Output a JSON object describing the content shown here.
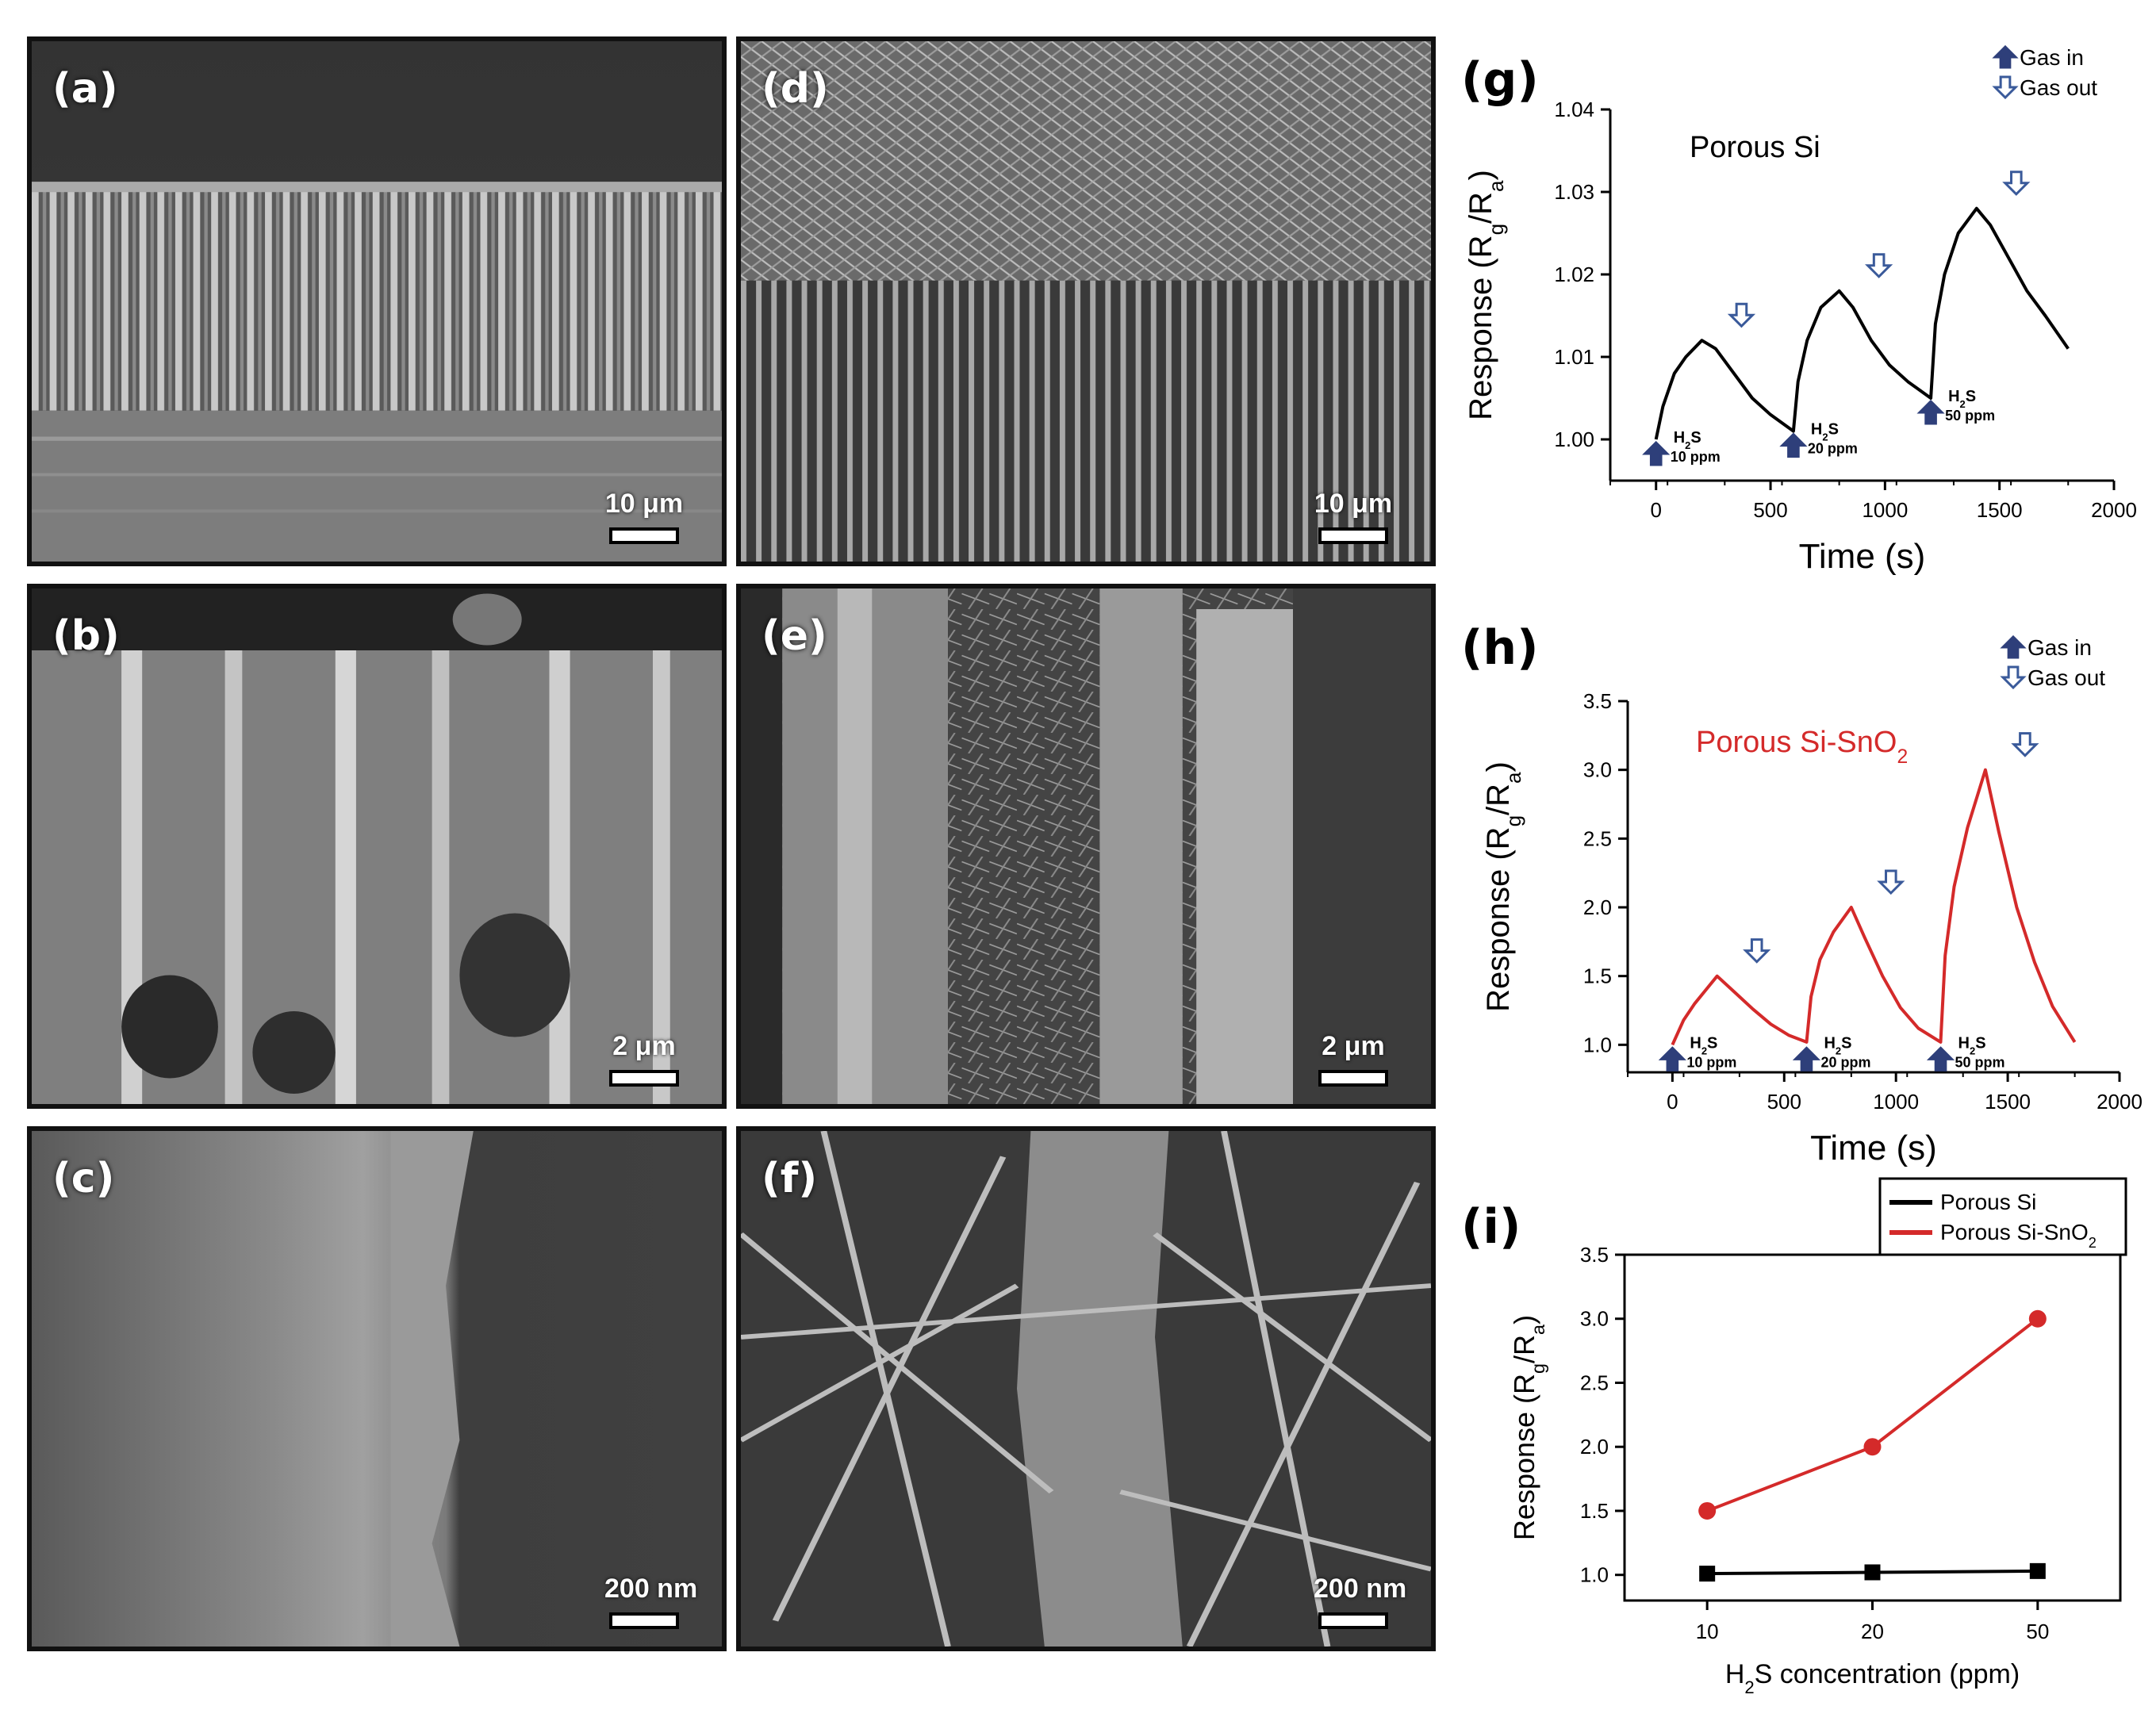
{
  "micrographs": [
    {
      "label": "(a)",
      "scale": "10 μm"
    },
    {
      "label": "(b)",
      "scale": "2 μm"
    },
    {
      "label": "(c)",
      "scale": "200 nm"
    },
    {
      "label": "(d)",
      "scale": "10 μm"
    },
    {
      "label": "(e)",
      "scale": "2 μm"
    },
    {
      "label": "(f)",
      "scale": "200 nm"
    }
  ],
  "legend_gas": {
    "in": "Gas in",
    "out": "Gas out"
  },
  "chart_data": [
    {
      "panel": "(g)",
      "type": "line",
      "annotation": "Porous Si",
      "xlabel": "Time (s)",
      "ylabel": "Response (Rg/Ra)",
      "xlim": [
        -200,
        2000
      ],
      "ylim": [
        0.995,
        1.04
      ],
      "xticks": [
        0,
        500,
        1000,
        1500,
        2000
      ],
      "yticks": [
        1.0,
        1.01,
        1.02,
        1.03,
        1.04
      ],
      "ytick_labels": [
        "1.00",
        "1.01",
        "1.02",
        "1.03",
        "1.04"
      ],
      "series": [
        {
          "color": "#000000",
          "x": [
            0,
            30,
            80,
            130,
            200,
            260,
            340,
            420,
            500,
            600,
            620,
            660,
            720,
            800,
            860,
            940,
            1020,
            1100,
            1200,
            1220,
            1260,
            1320,
            1400,
            1460,
            1540,
            1620,
            1700,
            1800
          ],
          "y": [
            1.0,
            1.004,
            1.008,
            1.01,
            1.012,
            1.011,
            1.008,
            1.005,
            1.003,
            1.001,
            1.007,
            1.012,
            1.016,
            1.018,
            1.016,
            1.012,
            1.009,
            1.007,
            1.005,
            1.014,
            1.02,
            1.025,
            1.028,
            1.026,
            1.022,
            1.018,
            1.015,
            1.011
          ]
        }
      ],
      "events": [
        {
          "type": "in",
          "x": 0,
          "y": 1.0,
          "gas": "H2S",
          "conc": "10 ppm"
        },
        {
          "type": "in",
          "x": 600,
          "y": 1.001,
          "gas": "H2S",
          "conc": "20 ppm"
        },
        {
          "type": "in",
          "x": 1200,
          "y": 1.005,
          "gas": "H2S",
          "conc": "50 ppm"
        },
        {
          "type": "out",
          "x": 200,
          "y": 1.012
        },
        {
          "type": "out",
          "x": 800,
          "y": 1.018
        },
        {
          "type": "out",
          "x": 1400,
          "y": 1.028
        }
      ]
    },
    {
      "panel": "(h)",
      "type": "line",
      "annotation": "Porous Si-SnO2",
      "xlabel": "Time (s)",
      "ylabel": "Response (Rg/Ra)",
      "xlim": [
        -200,
        2000
      ],
      "ylim": [
        0.8,
        3.5
      ],
      "xticks": [
        0,
        500,
        1000,
        1500,
        2000
      ],
      "yticks": [
        1.0,
        1.5,
        2.0,
        2.5,
        3.0,
        3.5
      ],
      "ytick_labels": [
        "1.0",
        "1.5",
        "2.0",
        "2.5",
        "3.0",
        "3.5"
      ],
      "series": [
        {
          "color": "#d42a2a",
          "x": [
            0,
            50,
            100,
            150,
            200,
            280,
            360,
            440,
            520,
            600,
            620,
            660,
            720,
            800,
            860,
            940,
            1020,
            1100,
            1200,
            1220,
            1260,
            1320,
            1400,
            1460,
            1540,
            1620,
            1700,
            1800
          ],
          "y": [
            1.0,
            1.18,
            1.3,
            1.4,
            1.5,
            1.38,
            1.26,
            1.15,
            1.07,
            1.02,
            1.35,
            1.62,
            1.82,
            2.0,
            1.78,
            1.5,
            1.27,
            1.12,
            1.02,
            1.65,
            2.15,
            2.58,
            3.0,
            2.55,
            2.0,
            1.6,
            1.28,
            1.02
          ]
        }
      ],
      "events": [
        {
          "type": "in",
          "x": 0,
          "y": 1.0,
          "gas": "H2S",
          "conc": "10 ppm"
        },
        {
          "type": "in",
          "x": 600,
          "y": 1.0,
          "gas": "H2S",
          "conc": "20 ppm"
        },
        {
          "type": "in",
          "x": 1200,
          "y": 1.0,
          "gas": "H2S",
          "conc": "50 ppm"
        },
        {
          "type": "out",
          "x": 200,
          "y": 1.5
        },
        {
          "type": "out",
          "x": 800,
          "y": 2.0
        },
        {
          "type": "out",
          "x": 1400,
          "y": 3.0
        }
      ]
    },
    {
      "panel": "(i)",
      "type": "line",
      "xlabel": "H2S concentration (ppm)",
      "ylabel": "Response (Rg/Ra)",
      "categories": [
        "10",
        "20",
        "50"
      ],
      "ylim": [
        0.8,
        3.5
      ],
      "yticks": [
        1.0,
        1.5,
        2.0,
        2.5,
        3.0,
        3.5
      ],
      "ytick_labels": [
        "1.0",
        "1.5",
        "2.0",
        "2.5",
        "3.0",
        "3.5"
      ],
      "series": [
        {
          "name": "Porous Si",
          "color": "#000000",
          "marker": "square",
          "values": [
            1.01,
            1.02,
            1.03
          ]
        },
        {
          "name": "Porous Si-SnO2",
          "color": "#d42a2a",
          "marker": "circle",
          "values": [
            1.5,
            2.0,
            3.0
          ]
        }
      ]
    }
  ]
}
